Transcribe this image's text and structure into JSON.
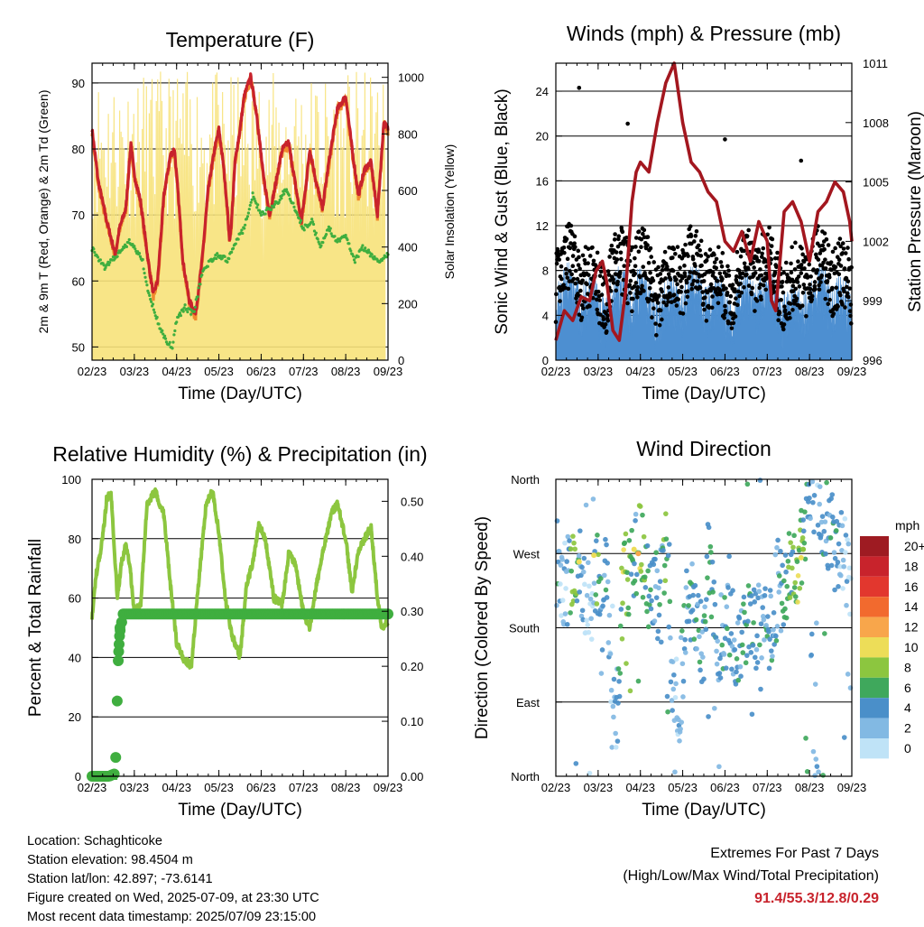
{
  "chart_data": [
    {
      "type": "line",
      "title": "Temperature (F)",
      "xlabel": "Time (Day/UTC)",
      "ylabel_left": "2m & 9m T (Red, Orange) & 2m Td (Green)",
      "ylabel_right": "Solar Insolation (Yellow)",
      "x_ticks": [
        "02/23",
        "03/23",
        "04/23",
        "05/23",
        "06/23",
        "07/23",
        "08/23",
        "09/23"
      ],
      "ylim": [
        48,
        93
      ],
      "y_ticks": [
        50,
        60,
        70,
        80,
        90
      ],
      "y2lim": [
        0,
        1050
      ],
      "y2_ticks": [
        0,
        200,
        400,
        600,
        800,
        1000
      ],
      "grid": true,
      "colors": {
        "t2m": "#c8232c",
        "t9m": "#f08a2d",
        "td": "#3fae3f",
        "solar": "#f7e27a"
      },
      "series": [
        {
          "role": "t2m",
          "x": [
            0,
            0.15,
            0.35,
            0.55,
            0.65,
            0.8,
            0.92,
            1.0,
            1.15,
            1.25,
            1.35,
            1.45,
            1.55,
            1.7,
            1.85,
            1.95,
            2.05,
            2.15,
            2.3,
            2.45,
            2.6,
            2.75,
            2.9,
            3.0,
            3.1,
            3.2,
            3.25,
            3.3,
            3.38,
            3.5,
            3.6,
            3.75,
            3.9,
            4.05,
            4.2,
            4.35,
            4.5,
            4.65,
            4.75,
            4.85,
            4.95,
            5.05,
            5.15,
            5.3,
            5.45,
            5.6,
            5.8,
            6.0,
            6.15,
            6.3,
            6.45,
            6.6,
            6.75,
            6.9,
            7.0
          ],
          "y": [
            83,
            75,
            69,
            64,
            68,
            71,
            81,
            76,
            72,
            67,
            62,
            58,
            60,
            73,
            79,
            80,
            72,
            63,
            57,
            55,
            63,
            74,
            80,
            83,
            78,
            71,
            66,
            69,
            78,
            83,
            88,
            91,
            85,
            76,
            70,
            75,
            80,
            81,
            77,
            73,
            69,
            74,
            80,
            75,
            71,
            78,
            86,
            88,
            80,
            73,
            77,
            78,
            70,
            84,
            83
          ]
        },
        {
          "role": "td",
          "x": [
            0,
            0.3,
            0.6,
            0.9,
            1.2,
            1.3,
            1.45,
            1.6,
            1.75,
            1.9,
            2.0,
            2.2,
            2.4,
            2.6,
            2.8,
            3.0,
            3.2,
            3.4,
            3.6,
            3.8,
            4.0,
            4.2,
            4.4,
            4.6,
            4.8,
            5.0,
            5.2,
            5.4,
            5.6,
            5.8,
            6.0,
            6.2,
            6.4,
            6.6,
            6.8,
            7.0
          ],
          "y": [
            65,
            62,
            64,
            66,
            63,
            59,
            56,
            53,
            51,
            50,
            54,
            56,
            55,
            61,
            63,
            64,
            63,
            66,
            68,
            73,
            70,
            71,
            72,
            74,
            71,
            68,
            69,
            65,
            68,
            66,
            67,
            63,
            65,
            64,
            63,
            64
          ]
        }
      ]
    },
    {
      "type": "scatter",
      "title": "Winds (mph) & Pressure (mb)",
      "xlabel": "Time (Day/UTC)",
      "ylabel_left": "Sonic Wind & Gust (Blue, Black)",
      "ylabel_right": "Station Pressure (Maroon)",
      "x_ticks": [
        "02/23",
        "03/23",
        "04/23",
        "05/23",
        "06/23",
        "07/23",
        "08/23",
        "09/23"
      ],
      "ylim": [
        0,
        26.5
      ],
      "y_ticks": [
        0,
        4,
        8,
        12,
        16,
        20,
        24
      ],
      "y2lim": [
        996,
        1011
      ],
      "y2_ticks": [
        996,
        999,
        1002,
        1005,
        1008,
        1011
      ],
      "grid": true,
      "colors": {
        "wind": "#4d8fd1",
        "gust": "#000000",
        "pressure": "#a3171f"
      },
      "series": [
        {
          "role": "pressure",
          "x": [
            0,
            0.2,
            0.4,
            0.6,
            0.8,
            0.95,
            1.1,
            1.2,
            1.35,
            1.5,
            1.65,
            1.8,
            1.9,
            2.0,
            2.2,
            2.4,
            2.6,
            2.8,
            2.9,
            3.0,
            3.2,
            3.4,
            3.6,
            3.8,
            4.0,
            4.2,
            4.4,
            4.6,
            4.8,
            5.0,
            5.1,
            5.2,
            5.4,
            5.6,
            5.8,
            6.0,
            6.2,
            6.4,
            6.6,
            6.8,
            6.95,
            7.0
          ],
          "y": [
            997,
            998.5,
            998,
            999.2,
            999,
            1000.5,
            1001,
            1000,
            997.5,
            997,
            999.5,
            1004,
            1005.5,
            1006,
            1005.5,
            1008,
            1010,
            1011,
            1009.5,
            1008,
            1006,
            1005.5,
            1004.5,
            1004,
            1002,
            1001.5,
            1002.5,
            1001,
            1003,
            1002,
            999,
            998.5,
            1003.5,
            1004,
            1003,
            1001,
            1003.5,
            1004,
            1005,
            1004.5,
            1003,
            1002
          ]
        }
      ]
    },
    {
      "type": "line",
      "title": "Relative Humidity (%) & Precipitation (in)",
      "xlabel": "Time (Day/UTC)",
      "ylabel_left": "Percent & Total Rainfall",
      "x_ticks": [
        "02/23",
        "03/23",
        "04/23",
        "05/23",
        "06/23",
        "07/23",
        "08/23",
        "09/23"
      ],
      "ylim": [
        0,
        100
      ],
      "y_ticks": [
        0,
        20,
        40,
        60,
        80,
        100
      ],
      "y2lim": [
        0,
        0.54
      ],
      "y2_ticks": [
        "0.00",
        "0.10",
        "0.20",
        "0.30",
        "0.40",
        "0.50"
      ],
      "grid": true,
      "colors": {
        "rh": "#8cc63f",
        "precip": "#3fae3f"
      },
      "series": [
        {
          "role": "rh",
          "x": [
            0,
            0.1,
            0.25,
            0.35,
            0.45,
            0.6,
            0.7,
            0.8,
            0.9,
            1.0,
            1.15,
            1.3,
            1.5,
            1.7,
            1.85,
            2.0,
            2.15,
            2.35,
            2.55,
            2.7,
            2.85,
            3.0,
            3.15,
            3.3,
            3.5,
            3.65,
            3.8,
            3.95,
            4.1,
            4.3,
            4.5,
            4.65,
            4.8,
            5.0,
            5.15,
            5.3,
            5.5,
            5.65,
            5.8,
            6.0,
            6.15,
            6.3,
            6.45,
            6.6,
            6.75,
            6.85,
            7.0
          ],
          "y": [
            54,
            68,
            80,
            94,
            95,
            60,
            72,
            78,
            70,
            55,
            58,
            92,
            96,
            88,
            65,
            45,
            40,
            37,
            70,
            92,
            96,
            82,
            60,
            48,
            40,
            64,
            72,
            85,
            80,
            60,
            58,
            75,
            72,
            55,
            50,
            64,
            78,
            88,
            92,
            80,
            62,
            76,
            80,
            84,
            60,
            50,
            52
          ]
        },
        {
          "role": "precip",
          "x": [
            0,
            0.4,
            0.55,
            0.62,
            0.65,
            0.68,
            0.7,
            0.72,
            0.8,
            1.0,
            3.0,
            5.0,
            7.0
          ],
          "y": [
            0,
            0,
            0.005,
            0.21,
            0.26,
            0.27,
            0.28,
            0.295,
            0.295,
            0.295,
            0.295,
            0.295,
            0.295
          ]
        }
      ]
    },
    {
      "type": "scatter",
      "title": "Wind Direction",
      "xlabel": "Time (Day/UTC)",
      "ylabel_left": "Direction (Colored By Speed)",
      "x_ticks": [
        "02/23",
        "03/23",
        "04/23",
        "05/23",
        "06/23",
        "07/23",
        "08/23",
        "09/23"
      ],
      "y_ticks": [
        "North",
        "East",
        "South",
        "West",
        "North"
      ],
      "ylim": [
        0,
        360
      ],
      "grid": true,
      "legend": {
        "title": "mph",
        "labels": [
          "20+",
          "18",
          "16",
          "14",
          "12",
          "10",
          "8",
          "6",
          "4",
          "2",
          "0"
        ],
        "colors": [
          "#9e1b22",
          "#c8232c",
          "#e2372e",
          "#f26a2e",
          "#f8a64b",
          "#eddd58",
          "#8cc63f",
          "#3fa85c",
          "#4a8fc9",
          "#82b9e3",
          "#bfe3f7"
        ],
        "placement": "right"
      },
      "series": [
        {
          "role": "direction",
          "x": [
            0.0,
            0.1,
            0.25,
            0.4,
            0.5,
            0.55,
            0.7,
            0.85,
            1.0,
            1.1,
            1.2,
            1.3,
            1.45,
            1.6,
            1.75,
            1.9,
            2.0,
            2.2,
            2.4,
            2.6,
            2.8,
            2.95,
            3.1,
            3.3,
            3.5,
            3.6,
            3.8,
            4.0,
            4.2,
            4.3,
            4.5,
            4.7,
            4.9,
            5.0,
            5.2,
            5.4,
            5.6,
            5.75,
            5.9,
            6.0,
            6.15,
            6.3,
            6.45,
            6.6,
            6.75,
            6.9
          ],
          "y": [
            265,
            250,
            230,
            265,
            260,
            270,
            215,
            200,
            265,
            150,
            280,
            90,
            75,
            260,
            240,
            270,
            275,
            230,
            210,
            270,
            95,
            90,
            230,
            200,
            150,
            270,
            160,
            180,
            170,
            160,
            190,
            185,
            170,
            180,
            195,
            230,
            250,
            270,
            300,
            330,
            345,
            320,
            300,
            280,
            270,
            250
          ],
          "speed": [
            4,
            2,
            1,
            8,
            6,
            3,
            1,
            0,
            7,
            2,
            4,
            1,
            3,
            8,
            6,
            4,
            9,
            5,
            3,
            6,
            2,
            3,
            4,
            5,
            3,
            6,
            3,
            4,
            3,
            4,
            5,
            4,
            3,
            4,
            3,
            5,
            6,
            9,
            4,
            3,
            2,
            4,
            3,
            5,
            2,
            2
          ]
        }
      ]
    }
  ],
  "info": {
    "location": "Location: Schaghticoke",
    "elevation": "Station elevation: 98.4504 m",
    "latlon": "Station lat/lon: 42.897; -73.6141",
    "created": "Figure created on Wed, 2025-07-09, at 23:30 UTC",
    "recent": "Most recent data timestamp: 2025/07/09 23:15:00"
  },
  "extremes": {
    "title": "Extremes For Past 7 Days",
    "subtitle": "(High/Low/Max Wind/Total Precipitation)",
    "values": "91.4/55.3/12.8/0.29"
  }
}
